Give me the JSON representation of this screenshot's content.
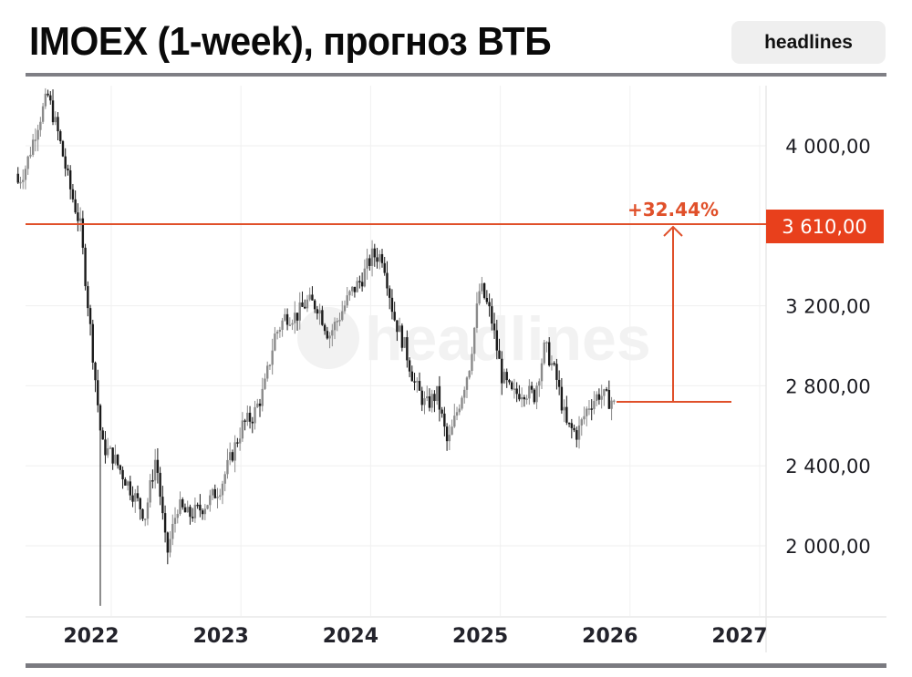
{
  "header": {
    "title": "IMOEX (1-week), прогноз ВТБ",
    "badge": "headlines"
  },
  "watermark": "headlines",
  "colors": {
    "accent": "#e8401c",
    "candle_up": "#8a8a8a",
    "candle_down": "#1a1a1a",
    "grid": "#efefef",
    "rule": "#7f7f85"
  },
  "chart_data": {
    "type": "candlestick",
    "title": "IMOEX (1-week), прогноз ВТБ",
    "xlabel": "",
    "ylabel": "",
    "x_ticks": [
      "2022",
      "2023",
      "2024",
      "2025",
      "2026",
      "2027"
    ],
    "y_ticks": [
      "4 000,00",
      "3 200,00",
      "2 800,00",
      "2 400,00",
      "2 000,00"
    ],
    "y_tick_values": [
      4000,
      3200,
      2800,
      2400,
      2000
    ],
    "ylim": [
      1650,
      4300
    ],
    "xlim": [
      "2021-06",
      "2027-03"
    ],
    "grid": true,
    "target": {
      "value": 3610,
      "label": "3 610,00"
    },
    "current": {
      "value": 2726
    },
    "change_label": "+32.44%",
    "annotations": [
      "+32.44%",
      "3 610,00"
    ],
    "series_close_path": [
      {
        "date": "2021-06",
        "value": 3860
      },
      {
        "date": "2021-07",
        "value": 3790
      },
      {
        "date": "2021-08",
        "value": 3900
      },
      {
        "date": "2021-09",
        "value": 4100
      },
      {
        "date": "2021-10",
        "value": 4250
      },
      {
        "date": "2021-11",
        "value": 4050
      },
      {
        "date": "2021-12",
        "value": 3800
      },
      {
        "date": "2022-01",
        "value": 3600
      },
      {
        "date": "2022-02",
        "value": 3050
      },
      {
        "date": "2022-03",
        "value": 2500
      },
      {
        "date": "2022-04",
        "value": 2450
      },
      {
        "date": "2022-05",
        "value": 2350
      },
      {
        "date": "2022-06",
        "value": 2250
      },
      {
        "date": "2022-07",
        "value": 2150
      },
      {
        "date": "2022-08",
        "value": 2450
      },
      {
        "date": "2022-09",
        "value": 1950
      },
      {
        "date": "2022-10",
        "value": 2200
      },
      {
        "date": "2022-11",
        "value": 2150
      },
      {
        "date": "2022-12",
        "value": 2180
      },
      {
        "date": "2023-01",
        "value": 2230
      },
      {
        "date": "2023-02",
        "value": 2300
      },
      {
        "date": "2023-03",
        "value": 2450
      },
      {
        "date": "2023-04",
        "value": 2600
      },
      {
        "date": "2023-05",
        "value": 2650
      },
      {
        "date": "2023-06",
        "value": 2780
      },
      {
        "date": "2023-07",
        "value": 3050
      },
      {
        "date": "2023-08",
        "value": 3150
      },
      {
        "date": "2023-09",
        "value": 3150
      },
      {
        "date": "2023-10",
        "value": 3220
      },
      {
        "date": "2023-11",
        "value": 3200
      },
      {
        "date": "2023-12",
        "value": 3050
      },
      {
        "date": "2024-01",
        "value": 3150
      },
      {
        "date": "2024-02",
        "value": 3260
      },
      {
        "date": "2024-03",
        "value": 3330
      },
      {
        "date": "2024-04",
        "value": 3450
      },
      {
        "date": "2024-05",
        "value": 3450
      },
      {
        "date": "2024-06",
        "value": 3150
      },
      {
        "date": "2024-07",
        "value": 3000
      },
      {
        "date": "2024-08",
        "value": 2800
      },
      {
        "date": "2024-09",
        "value": 2700
      },
      {
        "date": "2024-10",
        "value": 2760
      },
      {
        "date": "2024-11",
        "value": 2500
      },
      {
        "date": "2024-12",
        "value": 2700
      },
      {
        "date": "2025-01",
        "value": 2900
      },
      {
        "date": "2025-02",
        "value": 3300
      },
      {
        "date": "2025-03",
        "value": 3150
      },
      {
        "date": "2025-04",
        "value": 2850
      },
      {
        "date": "2025-05",
        "value": 2750
      },
      {
        "date": "2025-06",
        "value": 2780
      },
      {
        "date": "2025-07",
        "value": 2750
      },
      {
        "date": "2025-08",
        "value": 3000
      },
      {
        "date": "2025-09",
        "value": 2850
      },
      {
        "date": "2025-10",
        "value": 2600
      },
      {
        "date": "2025-11",
        "value": 2560
      },
      {
        "date": "2025-12",
        "value": 2700
      },
      {
        "date": "2026-01",
        "value": 2760
      },
      {
        "date": "2026-02",
        "value": 2726
      }
    ]
  },
  "axis": {
    "y_labels": [
      {
        "label": "4 000,00",
        "value": 4000
      },
      {
        "label": "3 200,00",
        "value": 3200
      },
      {
        "label": "2 800,00",
        "value": 2800
      },
      {
        "label": "2 400,00",
        "value": 2400
      },
      {
        "label": "2 000,00",
        "value": 2000
      }
    ],
    "x_labels": [
      {
        "label": "2022",
        "year": 2022
      },
      {
        "label": "2023",
        "year": 2023
      },
      {
        "label": "2024",
        "year": 2024
      },
      {
        "label": "2025",
        "year": 2025
      },
      {
        "label": "2026",
        "year": 2026
      },
      {
        "label": "2027",
        "year": 2027
      }
    ]
  }
}
